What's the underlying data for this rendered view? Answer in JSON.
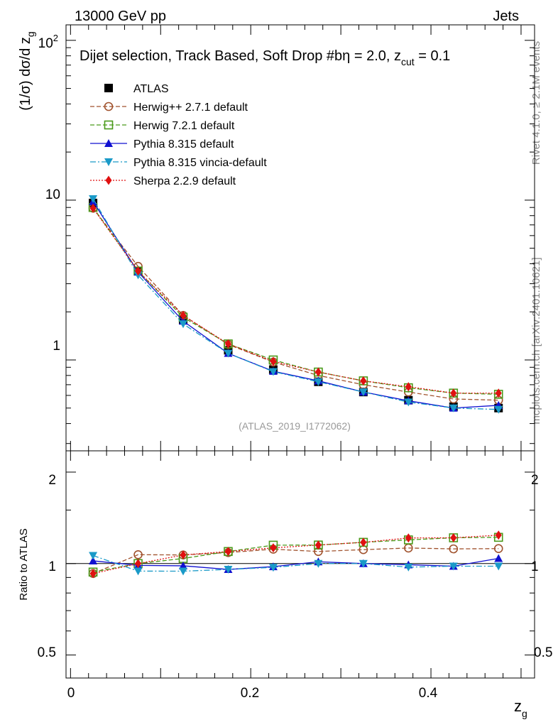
{
  "header": {
    "left": "13000 GeV pp",
    "right": "Jets",
    "side_top": "Rivet 4.1.0, ≥ 2.1M events",
    "side_bottom": "mcplots.cern.ch [arXiv:2401.10621]"
  },
  "chart_data": {
    "type": "line",
    "title": "Dijet selection, Track Based, Soft Drop #bη = 2.0, z_cut = 0.1",
    "title_main": "Dijet selection, Track Based, Soft Drop #bη = 2.0, z",
    "title_sub": "cut",
    "title_end": " = 0.1",
    "analysis_id": "(ATLAS_2019_I1772062)",
    "xlabel": "z",
    "xlabel_sub": "g",
    "ylabel": "(1/σ) dσ/d z",
    "ylabel_sub": "g",
    "ratio_ylabel": "Ratio to ATLAS",
    "xlim": [
      -0.005,
      0.515
    ],
    "ylim_main": [
      0.27,
      125
    ],
    "ylim_ratio": [
      0.42,
      2.35
    ],
    "y_scale": "log",
    "x_ticks": [
      0,
      0.2,
      0.4
    ],
    "x_tick_labels": [
      "0",
      "0.2",
      "0.4"
    ],
    "main_y_tick_labels": {
      "100_base": "10",
      "100_exp": "2",
      "10": "10",
      "1": "1"
    },
    "ratio_y_tick_labels": [
      "2",
      "1",
      "0.5"
    ],
    "legend_position": "top-left",
    "x": [
      0.025,
      0.075,
      0.125,
      0.175,
      0.225,
      0.275,
      0.325,
      0.375,
      0.425,
      0.475
    ],
    "data": {
      "name": "ATLAS",
      "values": [
        9.6,
        3.6,
        1.78,
        1.15,
        0.87,
        0.73,
        0.63,
        0.56,
        0.51,
        0.5
      ]
    },
    "series": [
      {
        "name": "Herwig++ 2.7.1 default",
        "color": "#a0522d",
        "marker": "circle-open",
        "dash": "6,3",
        "values": [
          8.9,
          3.85,
          1.9,
          1.25,
          0.97,
          0.8,
          0.7,
          0.63,
          0.57,
          0.56
        ]
      },
      {
        "name": "Herwig 7.2.1 default",
        "color": "#4a9a1a",
        "marker": "square-open",
        "dash": "6,3",
        "values": [
          9.0,
          3.6,
          1.85,
          1.26,
          1.0,
          0.84,
          0.74,
          0.67,
          0.62,
          0.61
        ]
      },
      {
        "name": "Pythia 8.315 default",
        "color": "#1010d0",
        "marker": "triangle-up",
        "dash": "",
        "values": [
          9.8,
          3.55,
          1.75,
          1.1,
          0.85,
          0.74,
          0.63,
          0.555,
          0.5,
          0.52
        ]
      },
      {
        "name": "Pythia 8.315 vincia-default",
        "color": "#1a9ac8",
        "marker": "triangle-down",
        "dash": "8,3,2,3",
        "values": [
          10.2,
          3.4,
          1.68,
          1.1,
          0.845,
          0.73,
          0.63,
          0.545,
          0.5,
          0.49
        ]
      },
      {
        "name": "Sherpa 2.2.9 default",
        "color": "#e01010",
        "marker": "diamond",
        "dash": "2,2",
        "values": [
          8.9,
          3.6,
          1.9,
          1.26,
          0.98,
          0.84,
          0.74,
          0.68,
          0.62,
          0.62
        ]
      }
    ]
  }
}
